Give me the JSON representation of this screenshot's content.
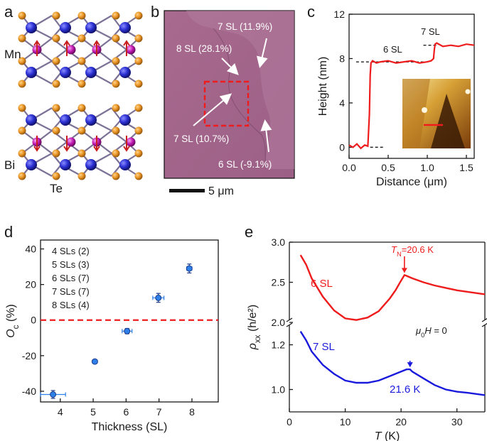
{
  "panel_labels": [
    "a",
    "b",
    "c",
    "d",
    "e"
  ],
  "panel_a": {
    "element_labels": [
      "Mn",
      "Bi",
      "Te"
    ]
  },
  "panel_b": {
    "annotations": [
      "7 SL (11.9%)",
      "8 SL (28.1%)",
      "7 SL (10.7%)",
      "6 SL (-9.1%)"
    ],
    "scale_bar": "5 μm"
  },
  "chart_data": [
    {
      "panel": "c",
      "type": "line",
      "xlabel": "Distance (μm)",
      "ylabel": "Height (nm)",
      "xlim": [
        0.0,
        1.6
      ],
      "ylim": [
        -1,
        12
      ],
      "xticks": [
        "0.0",
        "0.5",
        "1.0",
        "1.5"
      ],
      "yticks": [
        "0",
        "4",
        "8",
        "12"
      ],
      "series": [
        {
          "name": "height profile",
          "color": "#ee1c1c",
          "x": [
            0.0,
            0.05,
            0.1,
            0.15,
            0.2,
            0.24,
            0.26,
            0.27,
            0.28,
            0.3,
            0.35,
            0.4,
            0.5,
            0.6,
            0.7,
            0.8,
            0.9,
            1.0,
            1.05,
            1.08,
            1.09,
            1.1,
            1.12,
            1.2,
            1.3,
            1.4,
            1.5,
            1.6
          ],
          "y": [
            0.2,
            0.0,
            0.3,
            -0.1,
            0.2,
            0.1,
            3.0,
            6.5,
            7.6,
            7.8,
            7.6,
            7.7,
            7.8,
            7.6,
            7.7,
            7.8,
            7.6,
            7.7,
            7.8,
            8.0,
            8.8,
            9.3,
            9.4,
            9.1,
            9.2,
            9.1,
            9.3,
            9.2
          ]
        }
      ],
      "reference_lines": [
        {
          "y": 0,
          "x": [
            0.27,
            0.45
          ]
        },
        {
          "y": 7.7,
          "x": [
            0.09,
            0.95
          ]
        },
        {
          "y": 9.2,
          "x": [
            0.95,
            1.13
          ]
        }
      ],
      "annotations": [
        "6 SL",
        "7 SL"
      ],
      "inset": "AFM image with red line cut"
    },
    {
      "panel": "d",
      "type": "scatter",
      "xlabel": "Thickness (SL)",
      "ylabel": "O",
      "ylabel_sub": "c",
      "ylabel_unit": " (%)",
      "xlim": [
        3.4,
        8.8
      ],
      "ylim": [
        -46,
        45
      ],
      "xticks": [
        "4",
        "5",
        "6",
        "7",
        "8"
      ],
      "yticks": [
        "40",
        "20",
        "0",
        "-20",
        "-40"
      ],
      "points": [
        {
          "x": 3.78,
          "y": -41.8,
          "xerr": 0.38,
          "yerr": 2.2
        },
        {
          "x": 5.05,
          "y": -23.3,
          "xerr": 0.07,
          "yerr": 0.8
        },
        {
          "x": 6.03,
          "y": -6.2,
          "xerr": 0.15,
          "yerr": 1.5
        },
        {
          "x": 6.98,
          "y": 12.5,
          "xerr": 0.17,
          "yerr": 2.5
        },
        {
          "x": 7.92,
          "y": 29.0,
          "xerr": 0.08,
          "yerr": 2.5
        }
      ],
      "reference_line": {
        "y": 0,
        "color": "#ee1c1c"
      },
      "legend": [
        "4 SLs (2)",
        "5 SLs (3)",
        "6 SLs (7)",
        "7 SLs (7)",
        "8 SLs (4)"
      ],
      "marker_color": "#2e7fe8"
    },
    {
      "panel": "e",
      "type": "line",
      "xlabel": "T",
      "xlabel_unit": " (K)",
      "ylabel": "ρ",
      "ylabel_sub": "xx",
      "ylabel_unit": " (h/e²)",
      "xlim": [
        0,
        35
      ],
      "ylim_upper": [
        2.0,
        3.0
      ],
      "ylim_lower": [
        0.9,
        1.3
      ],
      "xticks": [
        "0",
        "10",
        "20",
        "30"
      ],
      "yticks_upper": [
        "3.0",
        "2.5",
        "2.0"
      ],
      "yticks_lower": [
        "1.2",
        "1.0"
      ],
      "series": [
        {
          "name": "6 SL",
          "color": "#ee1c1c",
          "x": [
            2,
            3,
            4,
            6,
            8,
            10,
            12,
            14,
            16,
            18,
            19,
            20,
            20.6,
            21,
            22,
            24,
            26,
            28,
            30,
            32,
            35
          ],
          "y": [
            2.84,
            2.72,
            2.55,
            2.32,
            2.15,
            2.05,
            2.03,
            2.06,
            2.14,
            2.3,
            2.4,
            2.52,
            2.59,
            2.58,
            2.55,
            2.5,
            2.46,
            2.43,
            2.4,
            2.38,
            2.35
          ]
        },
        {
          "name": "7 SL",
          "color": "#1a1adc",
          "x": [
            2,
            3,
            4,
            6,
            8,
            10,
            12,
            14,
            16,
            18,
            20,
            21,
            21.6,
            22,
            24,
            26,
            28,
            30,
            32,
            35
          ],
          "y": [
            1.26,
            1.22,
            1.17,
            1.11,
            1.07,
            1.04,
            1.03,
            1.03,
            1.04,
            1.06,
            1.08,
            1.09,
            1.09,
            1.08,
            1.05,
            1.02,
            1.0,
            0.99,
            0.985,
            0.975
          ]
        }
      ],
      "annotations": {
        "tn_symbol": "T",
        "tn_sub": "N",
        "tn_value": "=20.6 K",
        "second_transition": "21.6 K",
        "field_mu": "μ",
        "field_sub": "0",
        "field_h": "H",
        "field_value": " = 0",
        "label_6sl": "6 SL",
        "label_7sl": "7 SL"
      }
    }
  ]
}
